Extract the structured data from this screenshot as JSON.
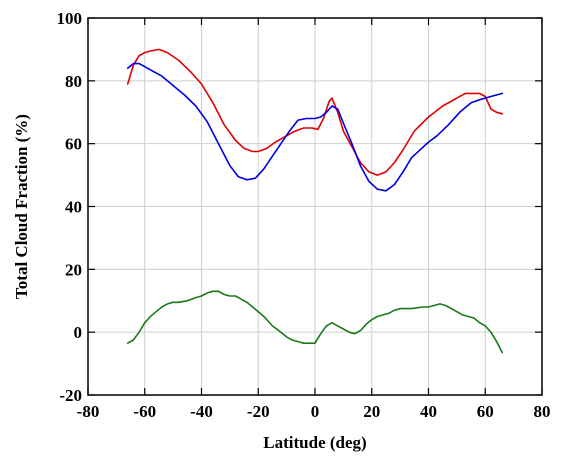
{
  "chart_data": {
    "type": "line",
    "title": "",
    "xlabel": "Latitude (deg)",
    "ylabel": "Total Cloud Fraction (%)",
    "xlim": [
      -80,
      80
    ],
    "ylim": [
      -20,
      100
    ],
    "xticks": [
      -80,
      -60,
      -40,
      -20,
      0,
      20,
      40,
      60,
      80
    ],
    "yticks": [
      -20,
      0,
      20,
      40,
      60,
      80,
      100
    ],
    "xtick_labels": [
      "-80",
      "-60",
      "-40",
      "-20",
      "0",
      "20",
      "40",
      "60",
      "80"
    ],
    "ytick_labels": [
      "-20",
      "0",
      "20",
      "40",
      "60",
      "80",
      "100"
    ],
    "grid": true,
    "legend": "none",
    "series": [
      {
        "color": "#e00000",
        "x": [
          -66,
          -64,
          -62,
          -60,
          -58,
          -55,
          -52,
          -48,
          -44,
          -40,
          -36,
          -32,
          -28,
          -25,
          -22,
          -20,
          -17,
          -14,
          -10,
          -7,
          -4,
          -1,
          1,
          3,
          5,
          6,
          8,
          10,
          13,
          16,
          19,
          22,
          25,
          28,
          31,
          35,
          40,
          45,
          50,
          53,
          55,
          58,
          60,
          62,
          64,
          66
        ],
        "y": [
          79,
          85,
          88,
          89,
          89.5,
          90,
          89,
          86.5,
          83,
          79,
          73,
          66,
          61,
          58.5,
          57.5,
          57.5,
          58.5,
          60.5,
          62.5,
          64,
          65,
          65,
          64.5,
          68,
          73.5,
          74.5,
          70,
          64,
          59,
          54,
          51,
          50,
          51,
          54,
          58,
          64,
          68.5,
          72,
          74.5,
          76,
          76,
          76,
          75,
          71,
          70,
          69.5
        ]
      },
      {
        "color": "#0000e0",
        "x": [
          -66,
          -64,
          -62,
          -60,
          -57,
          -54,
          -50,
          -46,
          -42,
          -38,
          -34,
          -30,
          -27,
          -24,
          -21,
          -18,
          -15,
          -12,
          -9,
          -6,
          -3,
          0,
          2,
          4,
          6,
          8,
          10,
          13,
          16,
          19,
          22,
          25,
          28,
          31,
          34,
          37,
          40,
          43,
          47,
          51,
          55,
          58,
          62,
          66
        ],
        "y": [
          84,
          85.5,
          85.5,
          84.5,
          83,
          81.5,
          78.5,
          75.5,
          72,
          67,
          60,
          53,
          49.5,
          48.5,
          49,
          52,
          56,
          60,
          64,
          67.5,
          68,
          68,
          68.5,
          70,
          72,
          71,
          66.5,
          60,
          53,
          48,
          45.5,
          45,
          47,
          51,
          55.5,
          58,
          60.5,
          62.5,
          66,
          70,
          73,
          74,
          75,
          76
        ]
      },
      {
        "color": "#1a7a1a",
        "x": [
          -66,
          -64,
          -62,
          -60,
          -58,
          -56,
          -54,
          -52,
          -50,
          -48,
          -45,
          -42,
          -40,
          -38,
          -36,
          -34,
          -32,
          -30,
          -28,
          -26,
          -24,
          -22,
          -20,
          -18,
          -15,
          -12,
          -10,
          -8,
          -6,
          -4,
          -2,
          0,
          2,
          4,
          6,
          8,
          10,
          12,
          14,
          16,
          18,
          20,
          22,
          24,
          26,
          28,
          30,
          34,
          38,
          40,
          42,
          44,
          46,
          48,
          50,
          52,
          54,
          56,
          58,
          60,
          62,
          64,
          66
        ],
        "y": [
          -3.5,
          -2.5,
          0,
          3,
          5,
          6.5,
          8,
          9,
          9.5,
          9.5,
          10,
          11,
          11.5,
          12.5,
          13,
          13,
          12,
          11.5,
          11.5,
          10.5,
          9.5,
          8,
          6.5,
          5,
          2,
          0,
          -1.5,
          -2.5,
          -3,
          -3.5,
          -3.5,
          -3.5,
          -0.5,
          2,
          3,
          2,
          1,
          0,
          -0.5,
          0.5,
          2.5,
          4,
          5,
          5.5,
          6,
          7,
          7.5,
          7.5,
          8,
          8,
          8.5,
          9,
          8.5,
          7.5,
          6.5,
          5.5,
          5,
          4.5,
          3,
          2,
          0,
          -3,
          -6.5
        ]
      }
    ]
  }
}
